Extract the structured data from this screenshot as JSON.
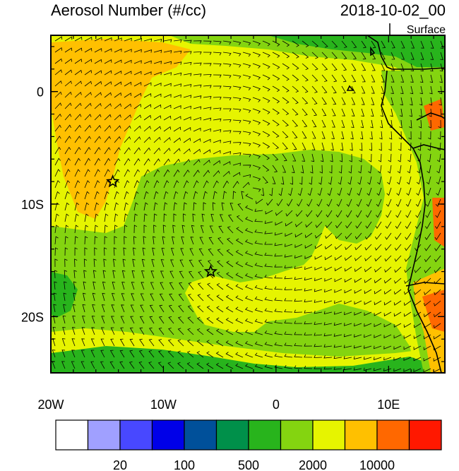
{
  "title_left": "Aerosol Number (#/cc)",
  "title_right": "2018-10-02_00",
  "level_label": "Surface",
  "lon_ticks": [
    {
      "value": -20,
      "label": "20W"
    },
    {
      "value": -10,
      "label": "10W"
    },
    {
      "value": 0,
      "label": "0"
    },
    {
      "value": 10,
      "label": "10E"
    }
  ],
  "lat_ticks": [
    {
      "value": 0,
      "label": "0"
    },
    {
      "value": -10,
      "label": "10S"
    },
    {
      "value": -20,
      "label": "20S"
    }
  ],
  "colorbar": {
    "colors": [
      "#ffffff",
      "#a0a0ff",
      "#4848ff",
      "#0000e8",
      "#00509a",
      "#00904a",
      "#28b41c",
      "#84d410",
      "#e6f400",
      "#ffc000",
      "#ff6800",
      "#ff1800"
    ],
    "labels": [
      "20",
      "100",
      "500",
      "2000",
      "10000"
    ]
  },
  "markers": [
    {
      "name": "star-marker-north",
      "lon": -14.5,
      "lat": -8.0
    },
    {
      "name": "star-marker-south",
      "lon": -5.8,
      "lat": -16.0
    }
  ],
  "map_extent": {
    "lon_min": -20,
    "lon_max": 15,
    "lat_min": -25,
    "lat_max": 5
  }
}
